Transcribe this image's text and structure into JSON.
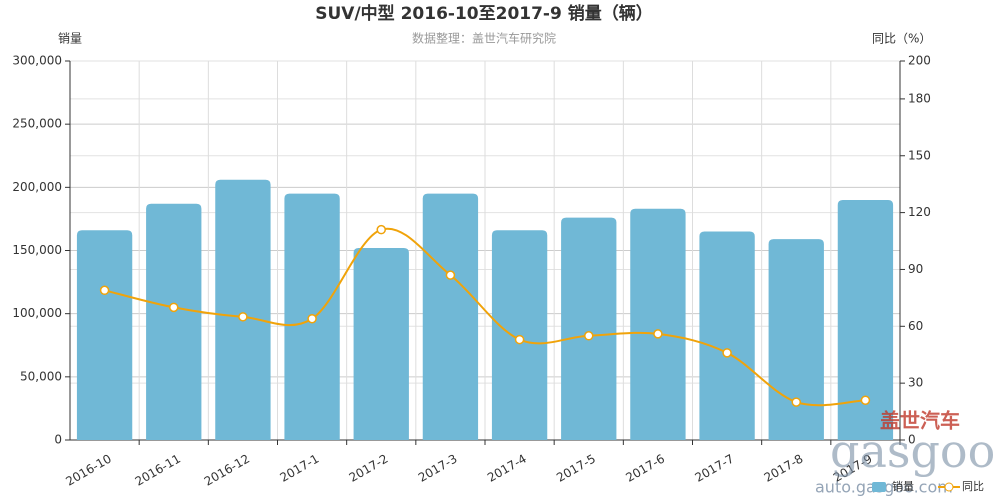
{
  "chart_data": {
    "type": "bar",
    "title": "SUV/中型 2016-10至2017-9 销量（辆）",
    "subtitle": "数据整理：盖世汽车研究院",
    "y_label": "销量",
    "y2_label": "同比（%）",
    "categories": [
      "2016-10",
      "2016-11",
      "2016-12",
      "2017-1",
      "2017-2",
      "2017-3",
      "2017-4",
      "2017-5",
      "2017-6",
      "2017-7",
      "2017-8",
      "2017-9"
    ],
    "series": [
      {
        "name": "销量",
        "type": "bar",
        "color": "#70b8d6",
        "values": [
          166000,
          187000,
          206000,
          195000,
          152000,
          195000,
          166000,
          176000,
          183000,
          165000,
          159000,
          190000
        ]
      },
      {
        "name": "同比",
        "type": "line",
        "axis": "y2",
        "color": "#f0a30a",
        "values": [
          79,
          70,
          65,
          64,
          111,
          87,
          53,
          55,
          56,
          46,
          20,
          21
        ]
      }
    ],
    "ylim": [
      0,
      300000
    ],
    "yticks": [
      0,
      {
        "value": 50000,
        "label": "50,000"
      },
      {
        "value": 100000,
        "label": "100,000"
      },
      {
        "value": 150000,
        "label": "150,000"
      },
      {
        "value": 200000,
        "label": "200,000"
      },
      {
        "value": 250000,
        "label": "250,000"
      },
      {
        "value": 300000,
        "label": "300,000"
      }
    ],
    "y2lim": [
      0,
      200
    ],
    "y2ticks": [
      0,
      30,
      60,
      90,
      120,
      150,
      180,
      200
    ],
    "grid": true,
    "watermark": [
      "盖世汽车",
      "gasgoo",
      "auto.gasgoo.com"
    ]
  }
}
